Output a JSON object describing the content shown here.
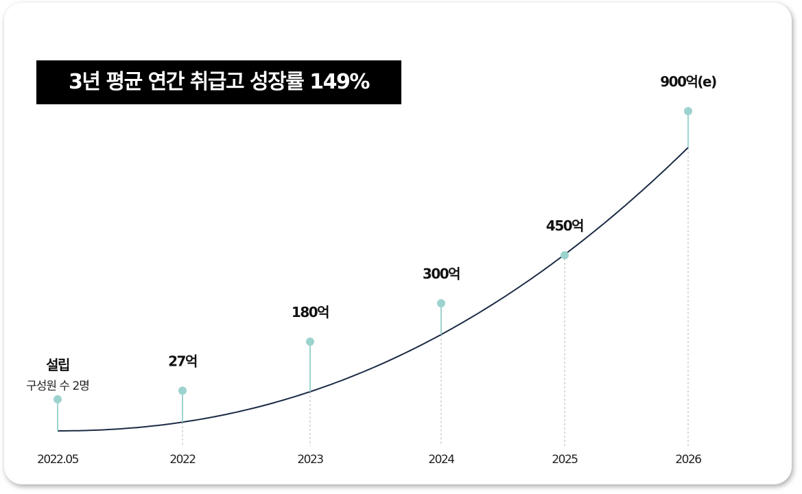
{
  "chart_data": {
    "type": "line",
    "title": "3년 평균 연간 취급고 성장률 149%",
    "categories": [
      "2022.05",
      "2022",
      "2023",
      "2024",
      "2025",
      "2026"
    ],
    "value_labels": [
      "설립",
      "27억",
      "180억",
      "300억",
      "450억",
      "900억(e)"
    ],
    "sub_labels": [
      "구성원 수 2명",
      "",
      "",
      "",
      "",
      ""
    ],
    "values": [
      0,
      27,
      180,
      300,
      450,
      900
    ],
    "xlabel": "",
    "ylabel": "",
    "grid": false,
    "legend": "none"
  },
  "colors": {
    "curve": "#1b2a44",
    "marker": "#9dd3cf",
    "dashed_guide": "#b5b5b5",
    "title_bg": "#000000",
    "title_text": "#ffffff"
  }
}
